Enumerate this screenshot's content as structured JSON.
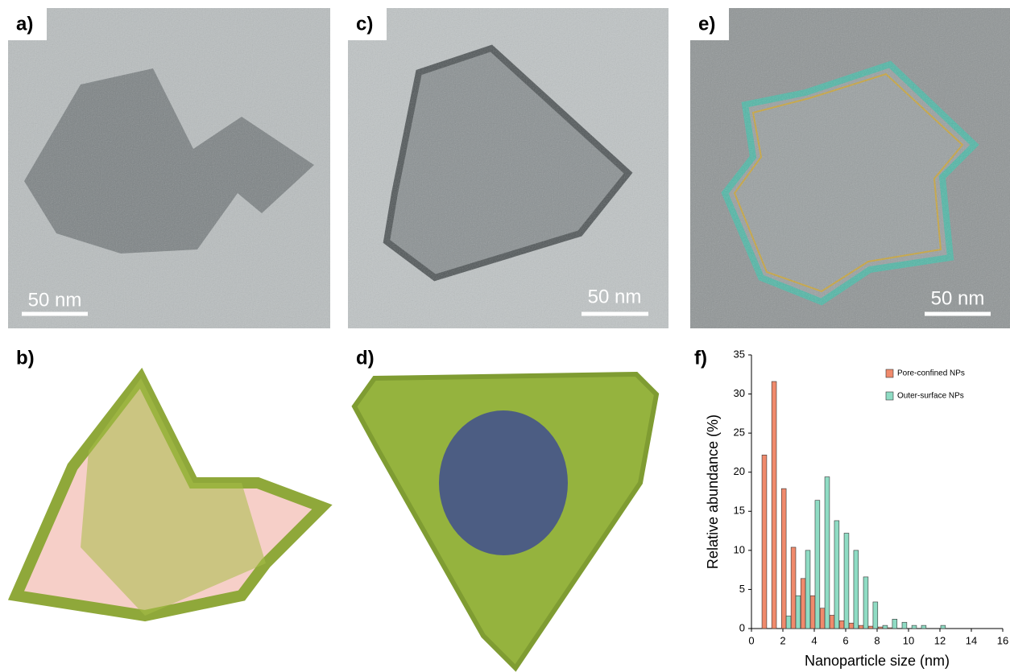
{
  "panels": [
    {
      "label": "a)",
      "scale": "50 nm"
    },
    {
      "label": "c)",
      "scale": "50 nm"
    },
    {
      "label": "e)",
      "scale": "50 nm"
    },
    {
      "label": "b)"
    },
    {
      "label": "d)"
    },
    {
      "label": "f)"
    }
  ],
  "chart_data": {
    "type": "bar",
    "x_label": "Nanoparticle size (nm)",
    "y_label": "Relative abundance (%)",
    "x": [
      0.97,
      1.59,
      2.21,
      2.82,
      3.44,
      4.05,
      4.67,
      5.28,
      5.9,
      6.51,
      7.13,
      7.74,
      8.36,
      8.97,
      9.59,
      10.21,
      10.82,
      11.44,
      12.05
    ],
    "series": [
      {
        "name": "Pore-confined NPs",
        "color": "#f08a6c",
        "values": [
          22.2,
          31.6,
          17.9,
          10.4,
          6.4,
          4.2,
          2.6,
          1.7,
          1.0,
          0.7,
          0.4,
          0.3,
          0.2,
          0.1,
          0,
          0,
          0,
          0,
          0
        ]
      },
      {
        "name": "Outer-surface NPs",
        "color": "#8fdcc4",
        "values": [
          0,
          0,
          1.6,
          4.2,
          10.0,
          16.4,
          19.4,
          13.8,
          12.2,
          10.0,
          6.6,
          3.4,
          0.4,
          1.2,
          0.8,
          0.4,
          0.4,
          0,
          0.4
        ]
      }
    ],
    "xlim": [
      0,
      16
    ],
    "xticks": [
      0,
      2,
      4,
      6,
      8,
      10,
      12,
      14,
      16
    ],
    "ylim": [
      0,
      35
    ],
    "yticks": [
      0,
      5,
      10,
      15,
      20,
      25,
      30,
      35
    ],
    "legend": "upper-right"
  }
}
